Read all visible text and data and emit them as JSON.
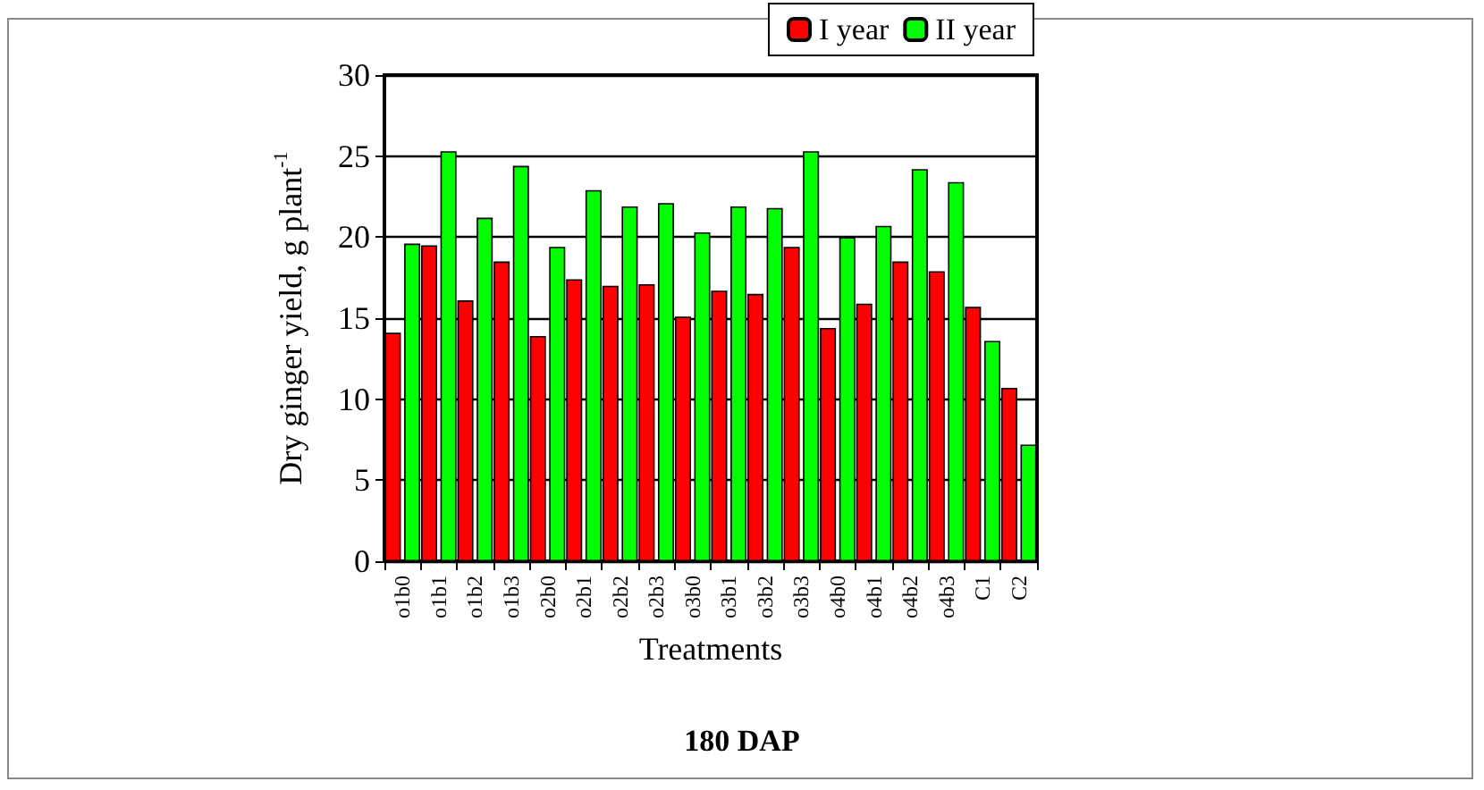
{
  "chart_data": {
    "type": "bar",
    "title": "180 DAP",
    "xlabel": "Treatments",
    "ylabel": "Dry ginger yield, g plant$^{-1}$",
    "categories": [
      "o1b0",
      "o1b1",
      "o1b2",
      "o1b3",
      "o2b0",
      "o2b1",
      "o2b2",
      "o2b3",
      "o3b0",
      "o3b1",
      "o3b2",
      "o3b3",
      "o4b0",
      "o4b1",
      "o4b2",
      "o4b3",
      "C1",
      "C2"
    ],
    "series": [
      {
        "name": "I year",
        "color": "#ff0000",
        "values": [
          14.1,
          19.5,
          16.1,
          18.5,
          13.9,
          17.4,
          17.0,
          17.1,
          15.1,
          16.7,
          16.5,
          19.4,
          14.4,
          15.9,
          18.5,
          17.9,
          15.7,
          10.7
        ]
      },
      {
        "name": "II year",
        "color": "#00ff00",
        "values": [
          19.6,
          25.3,
          21.2,
          24.4,
          19.4,
          22.9,
          21.9,
          22.1,
          20.3,
          21.9,
          21.8,
          25.3,
          20.0,
          20.7,
          24.2,
          23.4,
          13.6,
          7.2
        ]
      }
    ],
    "ylim": [
      0,
      30
    ],
    "yticks": [
      0,
      5,
      10,
      15,
      20,
      25,
      30
    ],
    "grid": "y",
    "legend": "top"
  }
}
